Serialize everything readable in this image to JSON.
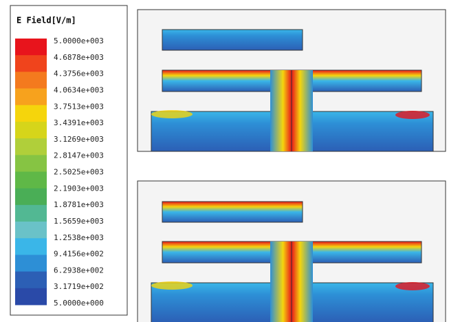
{
  "legend": {
    "title": "E Field[V/m]",
    "labels": [
      "5.0000e+003",
      "4.6878e+003",
      "4.3756e+003",
      "4.0634e+003",
      "3.7513e+003",
      "3.4391e+003",
      "3.1269e+003",
      "2.8147e+003",
      "2.5025e+003",
      "2.1903e+003",
      "1.8781e+003",
      "1.5659e+003",
      "1.2538e+003",
      "9.4156e+002",
      "6.2938e+002",
      "3.1719e+002",
      "5.0000e+000"
    ],
    "colors": [
      "#e8141c",
      "#f0441c",
      "#f47a1e",
      "#f7a21d",
      "#f5d50c",
      "#d6d51a",
      "#b0cf3a",
      "#86c443",
      "#5fb847",
      "#4aae56",
      "#52b893",
      "#6ac2c8",
      "#3ab6e8",
      "#2d8fd6",
      "#2c5fb5",
      "#2a4aa8"
    ]
  }
}
